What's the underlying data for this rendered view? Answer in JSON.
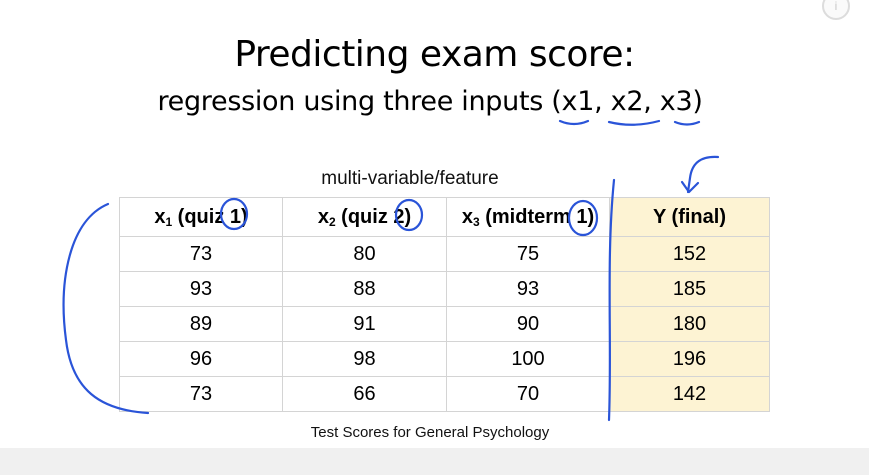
{
  "slide": {
    "title": "Predicting exam score:",
    "subtitle": "regression using three inputs (x1, x2, x3)",
    "table_caption": "multi-variable/feature",
    "footer": "Test Scores for General Psychology"
  },
  "table": {
    "headers": [
      {
        "var": "x",
        "sub": "1",
        "label": " (quiz 1)"
      },
      {
        "var": "x",
        "sub": "2",
        "label": " (quiz 2)"
      },
      {
        "var": "x",
        "sub": "3",
        "label": " (midterm 1)"
      },
      {
        "var": "",
        "sub": "",
        "label": "Y (final)"
      }
    ],
    "rows": [
      [
        "73",
        "80",
        "75",
        "152"
      ],
      [
        "93",
        "88",
        "93",
        "185"
      ],
      [
        "89",
        "91",
        "90",
        "180"
      ],
      [
        "96",
        "98",
        "100",
        "196"
      ],
      [
        "73",
        "66",
        "70",
        "142"
      ]
    ]
  },
  "colors": {
    "ink": "#2a54d8",
    "highlight_column": "#fdf3d3",
    "border": "#d4d4d4"
  },
  "icons": {
    "corner": "info-circle-icon"
  }
}
